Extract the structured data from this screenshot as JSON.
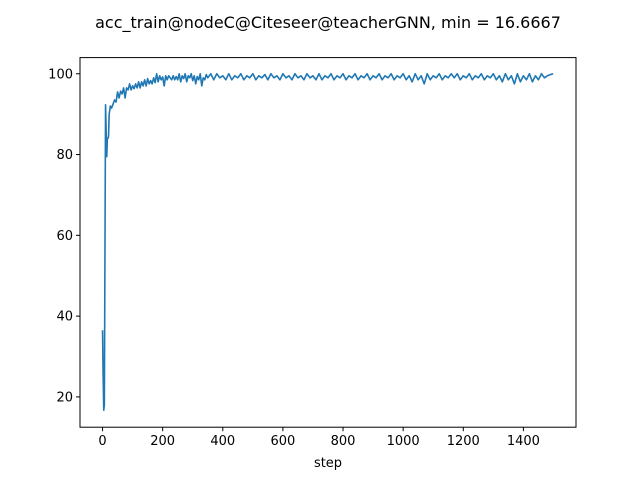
{
  "chart_data": {
    "type": "line",
    "title": "acc_train@nodeC@Citeseer@teacherGNN, min = 16.6667",
    "xlabel": "step",
    "ylabel": "",
    "xlim": [
      -75,
      1575
    ],
    "ylim": [
      12.5,
      104.0
    ],
    "xticks": [
      0,
      200,
      400,
      600,
      800,
      1000,
      1200,
      1400
    ],
    "yticks": [
      20,
      40,
      60,
      80,
      100
    ],
    "grid": false,
    "legend": false,
    "series": [
      {
        "color": "#1f77b4",
        "points": [
          [
            0,
            36.5
          ],
          [
            2,
            25
          ],
          [
            4,
            16.7
          ],
          [
            6,
            18
          ],
          [
            8,
            55
          ],
          [
            10,
            92.3
          ],
          [
            12,
            86
          ],
          [
            14,
            79.5
          ],
          [
            16,
            84
          ],
          [
            18,
            84
          ],
          [
            20,
            84.5
          ],
          [
            22,
            90
          ],
          [
            26,
            92
          ],
          [
            30,
            91.5
          ],
          [
            35,
            92.5
          ],
          [
            40,
            93.5
          ],
          [
            45,
            93
          ],
          [
            50,
            95.5
          ],
          [
            55,
            94
          ],
          [
            60,
            95.7
          ],
          [
            65,
            95
          ],
          [
            70,
            96.5
          ],
          [
            75,
            94
          ],
          [
            80,
            96.5
          ],
          [
            85,
            96
          ],
          [
            90,
            97.5
          ],
          [
            95,
            96
          ],
          [
            100,
            97
          ],
          [
            105,
            96.3
          ],
          [
            110,
            97.5
          ],
          [
            115,
            96.5
          ],
          [
            120,
            98
          ],
          [
            125,
            96.5
          ],
          [
            130,
            98
          ],
          [
            135,
            97
          ],
          [
            140,
            98.5
          ],
          [
            145,
            97
          ],
          [
            150,
            98.8
          ],
          [
            155,
            97.5
          ],
          [
            160,
            98.3
          ],
          [
            165,
            97.5
          ],
          [
            170,
            99
          ],
          [
            175,
            97.8
          ],
          [
            180,
            100
          ],
          [
            185,
            98
          ],
          [
            190,
            99.5
          ],
          [
            195,
            98.5
          ],
          [
            200,
            99.2
          ],
          [
            205,
            97
          ],
          [
            210,
            99.5
          ],
          [
            215,
            98.5
          ],
          [
            220,
            99.5
          ],
          [
            225,
            99
          ],
          [
            230,
            98.5
          ],
          [
            235,
            99.5
          ],
          [
            240,
            98.5
          ],
          [
            245,
            99.3
          ],
          [
            250,
            98.5
          ],
          [
            255,
            100
          ],
          [
            260,
            98
          ],
          [
            265,
            99.5
          ],
          [
            270,
            98.8
          ],
          [
            275,
            100
          ],
          [
            280,
            98
          ],
          [
            285,
            99.5
          ],
          [
            290,
            99
          ],
          [
            295,
            100
          ],
          [
            300,
            98.3
          ],
          [
            305,
            99.5
          ],
          [
            310,
            97.5
          ],
          [
            315,
            99.3
          ],
          [
            320,
            98.5
          ],
          [
            325,
            100
          ],
          [
            330,
            97
          ],
          [
            335,
            99
          ],
          [
            340,
            98.5
          ],
          [
            345,
            99.8
          ],
          [
            350,
            99
          ],
          [
            360,
            100
          ],
          [
            370,
            98.5
          ],
          [
            380,
            100
          ],
          [
            390,
            99
          ],
          [
            400,
            99.5
          ],
          [
            410,
            98.5
          ],
          [
            420,
            100
          ],
          [
            430,
            98.5
          ],
          [
            440,
            99.5
          ],
          [
            450,
            99
          ],
          [
            460,
            100
          ],
          [
            470,
            98.5
          ],
          [
            480,
            99.5
          ],
          [
            490,
            99
          ],
          [
            500,
            100
          ],
          [
            510,
            98.5
          ],
          [
            520,
            99.5
          ],
          [
            530,
            99
          ],
          [
            540,
            99.8
          ],
          [
            550,
            98.5
          ],
          [
            560,
            100
          ],
          [
            570,
            99
          ],
          [
            580,
            99.5
          ],
          [
            590,
            98.5
          ],
          [
            600,
            100
          ],
          [
            610,
            99
          ],
          [
            620,
            99.5
          ],
          [
            630,
            98.5
          ],
          [
            640,
            100
          ],
          [
            650,
            99
          ],
          [
            660,
            99.5
          ],
          [
            670,
            98.5
          ],
          [
            680,
            100
          ],
          [
            690,
            99
          ],
          [
            700,
            99.5
          ],
          [
            710,
            98.5
          ],
          [
            720,
            100
          ],
          [
            730,
            98.5
          ],
          [
            740,
            99.5
          ],
          [
            750,
            99
          ],
          [
            760,
            100
          ],
          [
            770,
            98.5
          ],
          [
            780,
            99.5
          ],
          [
            790,
            99
          ],
          [
            800,
            100
          ],
          [
            810,
            98.5
          ],
          [
            820,
            99.5
          ],
          [
            830,
            99
          ],
          [
            840,
            100
          ],
          [
            850,
            98.5
          ],
          [
            860,
            99.5
          ],
          [
            870,
            99
          ],
          [
            880,
            100
          ],
          [
            890,
            98.5
          ],
          [
            900,
            99.5
          ],
          [
            910,
            99
          ],
          [
            920,
            100
          ],
          [
            930,
            98.5
          ],
          [
            940,
            99.5
          ],
          [
            950,
            99
          ],
          [
            960,
            100
          ],
          [
            970,
            98.5
          ],
          [
            980,
            99.5
          ],
          [
            990,
            99
          ],
          [
            1000,
            100
          ],
          [
            1010,
            98.5
          ],
          [
            1020,
            99.5
          ],
          [
            1030,
            98
          ],
          [
            1040,
            100
          ],
          [
            1050,
            98.5
          ],
          [
            1060,
            99.5
          ],
          [
            1070,
            97.5
          ],
          [
            1080,
            100
          ],
          [
            1090,
            98.5
          ],
          [
            1100,
            99.5
          ],
          [
            1110,
            99
          ],
          [
            1120,
            100
          ],
          [
            1130,
            98.5
          ],
          [
            1140,
            99.5
          ],
          [
            1150,
            99
          ],
          [
            1160,
            100
          ],
          [
            1170,
            99
          ],
          [
            1180,
            100
          ],
          [
            1190,
            98.5
          ],
          [
            1200,
            99.5
          ],
          [
            1210,
            99
          ],
          [
            1220,
            100
          ],
          [
            1230,
            98.5
          ],
          [
            1240,
            99.5
          ],
          [
            1250,
            99
          ],
          [
            1260,
            100
          ],
          [
            1270,
            98.5
          ],
          [
            1280,
            99.5
          ],
          [
            1290,
            99
          ],
          [
            1300,
            100
          ],
          [
            1310,
            98.5
          ],
          [
            1320,
            99.5
          ],
          [
            1330,
            98
          ],
          [
            1340,
            100
          ],
          [
            1350,
            98.5
          ],
          [
            1360,
            99.5
          ],
          [
            1370,
            97.5
          ],
          [
            1380,
            100
          ],
          [
            1390,
            98
          ],
          [
            1400,
            99.5
          ],
          [
            1410,
            98.5
          ],
          [
            1420,
            100
          ],
          [
            1430,
            98
          ],
          [
            1440,
            99.5
          ],
          [
            1450,
            98.5
          ],
          [
            1460,
            100
          ],
          [
            1470,
            99
          ],
          [
            1480,
            99.5
          ],
          [
            1490,
            99.8
          ],
          [
            1499,
            100
          ]
        ]
      }
    ]
  }
}
